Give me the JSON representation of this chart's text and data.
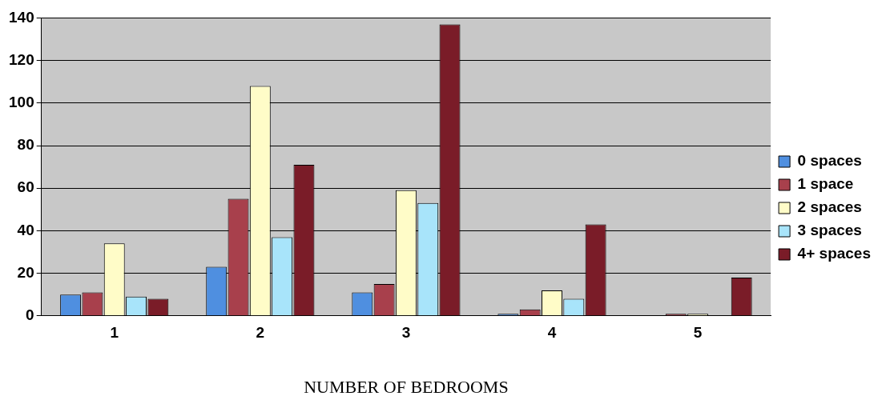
{
  "chart_data": {
    "type": "bar",
    "xlabel": "NUMBER OF BEDROOMS",
    "categories": [
      "1",
      "2",
      "3",
      "4",
      "5"
    ],
    "series": [
      {
        "name": "0 spaces",
        "color": "#4f8fe0",
        "values": [
          10,
          23,
          11,
          1,
          0
        ]
      },
      {
        "name": "1 space",
        "color": "#a8404c",
        "values": [
          11,
          55,
          15,
          3,
          1
        ]
      },
      {
        "name": "2 spaces",
        "color": "#fffcc8",
        "values": [
          34,
          108,
          59,
          12,
          1
        ]
      },
      {
        "name": "3 spaces",
        "color": "#a8e4fa",
        "values": [
          9,
          37,
          53,
          8,
          0
        ]
      },
      {
        "name": "4+ spaces",
        "color": "#7a1c28",
        "values": [
          8,
          71,
          137,
          43,
          18
        ]
      }
    ],
    "ylim": [
      0,
      140
    ],
    "yticks": [
      0,
      20,
      40,
      60,
      80,
      100,
      120,
      140
    ],
    "grid": "y",
    "legend": "right"
  }
}
